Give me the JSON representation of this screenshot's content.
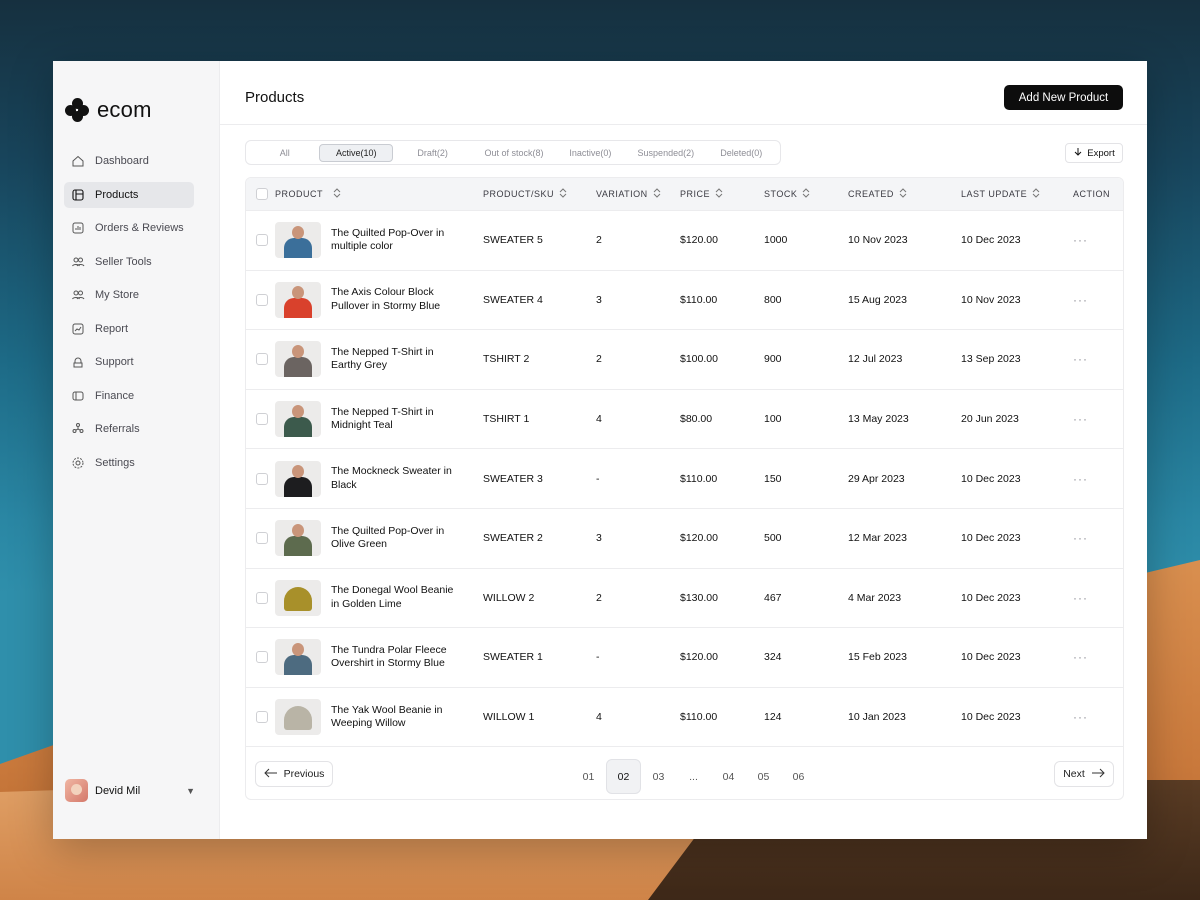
{
  "app": {
    "logo_text": "ecom",
    "page_title": "Products",
    "add_button": "Add New Product"
  },
  "sidebar": {
    "items": [
      {
        "label": "Dashboard",
        "icon": "home-icon"
      },
      {
        "label": "Products",
        "icon": "products-icon",
        "active": true
      },
      {
        "label": "Orders & Reviews",
        "icon": "orders-icon"
      },
      {
        "label": "Seller Tools",
        "icon": "users-icon"
      },
      {
        "label": "My Store",
        "icon": "store-icon"
      },
      {
        "label": "Report",
        "icon": "report-icon"
      },
      {
        "label": "Support",
        "icon": "support-icon"
      },
      {
        "label": "Finance",
        "icon": "finance-icon"
      },
      {
        "label": "Referrals",
        "icon": "referrals-icon"
      },
      {
        "label": "Settings",
        "icon": "gear-icon"
      }
    ],
    "user": {
      "name": "Devid Mil"
    }
  },
  "filters": {
    "tabs": [
      "All",
      "Active(10)",
      "Draft(2)",
      "Out of stock(8)",
      "Inactive(0)",
      "Suspended(2)",
      "Deleted(0)"
    ],
    "active": "Active(10)",
    "export_label": "Export"
  },
  "table": {
    "columns": [
      "PRODUCT",
      "PRODUCT/SKU",
      "VARIATION",
      "PRICE",
      "STOCK",
      "CREATED",
      "LAST UPDATE",
      "ACTION"
    ],
    "rows": [
      {
        "name": "The Quilted Pop-Over in multiple color",
        "sku": "SWEATER 5",
        "variation": "2",
        "price": "$120.00",
        "stock": "1000",
        "created": "10 Nov 2023",
        "updated": "10 Dec 2023",
        "thumb_color": "#3b6f9a"
      },
      {
        "name": "The Axis Colour Block Pullover in Stormy Blue",
        "sku": "SWEATER 4",
        "variation": "3",
        "price": "$110.00",
        "stock": "800",
        "created": "15 Aug 2023",
        "updated": "10 Nov 2023",
        "thumb_color": "#d9412c"
      },
      {
        "name": "The Nepped T-Shirt in Earthy Grey",
        "sku": "TSHIRT 2",
        "variation": "2",
        "price": "$100.00",
        "stock": "900",
        "created": "12 Jul 2023",
        "updated": "13 Sep 2023",
        "thumb_color": "#6b6461"
      },
      {
        "name": "The Nepped T-Shirt in Midnight Teal",
        "sku": "TSHIRT 1",
        "variation": "4",
        "price": "$80.00",
        "stock": "100",
        "created": "13 May 2023",
        "updated": "20 Jun 2023",
        "thumb_color": "#3c5a4c"
      },
      {
        "name": "The Mockneck Sweater in Black",
        "sku": "SWEATER 3",
        "variation": "-",
        "price": "$110.00",
        "stock": "150",
        "created": "29 Apr 2023",
        "updated": "10 Dec 2023",
        "thumb_color": "#1d1d1f"
      },
      {
        "name": "The Quilted Pop-Over in Olive Green",
        "sku": "SWEATER 2",
        "variation": "3",
        "price": "$120.00",
        "stock": "500",
        "created": "12 Mar 2023",
        "updated": "10 Dec 2023",
        "thumb_color": "#5d6b4e"
      },
      {
        "name": "The Donegal Wool Beanie in Golden Lime",
        "sku": "WILLOW 2",
        "variation": "2",
        "price": "$130.00",
        "stock": "467",
        "created": "4 Mar 2023",
        "updated": "10 Dec 2023",
        "thumb_color": "#a8902a",
        "beanie": true
      },
      {
        "name": "The Tundra Polar Fleece Overshirt in Stormy Blue",
        "sku": "SWEATER 1",
        "variation": "-",
        "price": "$120.00",
        "stock": "324",
        "created": "15 Feb 2023",
        "updated": "10 Dec 2023",
        "thumb_color": "#4d6b80"
      },
      {
        "name": "The Yak Wool Beanie in Weeping Willow",
        "sku": "WILLOW 1",
        "variation": "4",
        "price": "$110.00",
        "stock": "124",
        "created": "10 Jan 2023",
        "updated": "10 Dec 2023",
        "thumb_color": "#b9b4a6",
        "beanie": true
      }
    ],
    "action_label": "···"
  },
  "pagination": {
    "previous": "Previous",
    "next": "Next",
    "pages": [
      "01",
      "02",
      "03",
      "...",
      "04",
      "05",
      "06"
    ],
    "current": "02"
  }
}
